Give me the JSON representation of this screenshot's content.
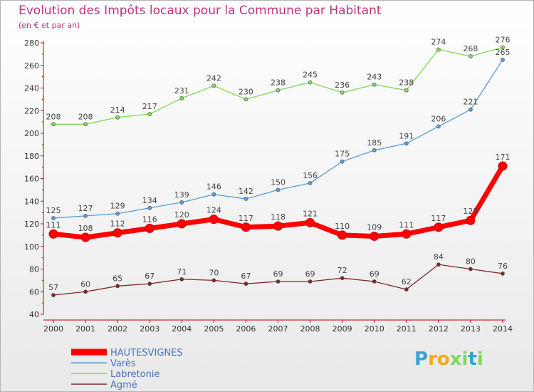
{
  "chart_data": {
    "type": "line",
    "title": "Evolution des Impôts locaux pour la Commune par Habitant",
    "subtitle": "(en € et par an)",
    "x": [
      "2000",
      "2001",
      "2002",
      "2003",
      "2004",
      "2005",
      "2006",
      "2007",
      "2008",
      "2009",
      "2010",
      "2011",
      "2012",
      "2013",
      "2014"
    ],
    "ylim": [
      40,
      280
    ],
    "yticks": [
      40,
      60,
      80,
      100,
      120,
      140,
      160,
      180,
      200,
      220,
      240,
      260,
      280
    ],
    "grid": false,
    "legend_position": "bottom-left",
    "series": [
      {
        "name": "HAUTESVIGNES",
        "color": "#ff0000",
        "values": [
          111,
          108,
          112,
          116,
          120,
          124,
          117,
          118,
          121,
          110,
          109,
          111,
          117,
          123,
          171
        ]
      },
      {
        "name": "Varès",
        "color": "#5b9bd5",
        "values": [
          125,
          127,
          129,
          134,
          139,
          146,
          142,
          150,
          156,
          175,
          185,
          191,
          206,
          221,
          265
        ]
      },
      {
        "name": "Labretonie",
        "color": "#7ed957",
        "values": [
          208,
          208,
          214,
          217,
          231,
          242,
          230,
          238,
          245,
          236,
          243,
          238,
          274,
          268,
          276
        ]
      },
      {
        "name": "Agmé",
        "color": "#7a2a2a",
        "values": [
          57,
          60,
          65,
          67,
          71,
          70,
          67,
          69,
          69,
          72,
          69,
          62,
          84,
          80,
          76
        ]
      }
    ]
  },
  "logo": {
    "letters": [
      "P",
      "r",
      "o",
      "x",
      "i",
      "t",
      "i"
    ],
    "colors": [
      "#3aa0d8",
      "#f5a623",
      "#f5a623",
      "#7ed957",
      "#7ed957",
      "#3aa0d8",
      "#7ed957"
    ]
  }
}
